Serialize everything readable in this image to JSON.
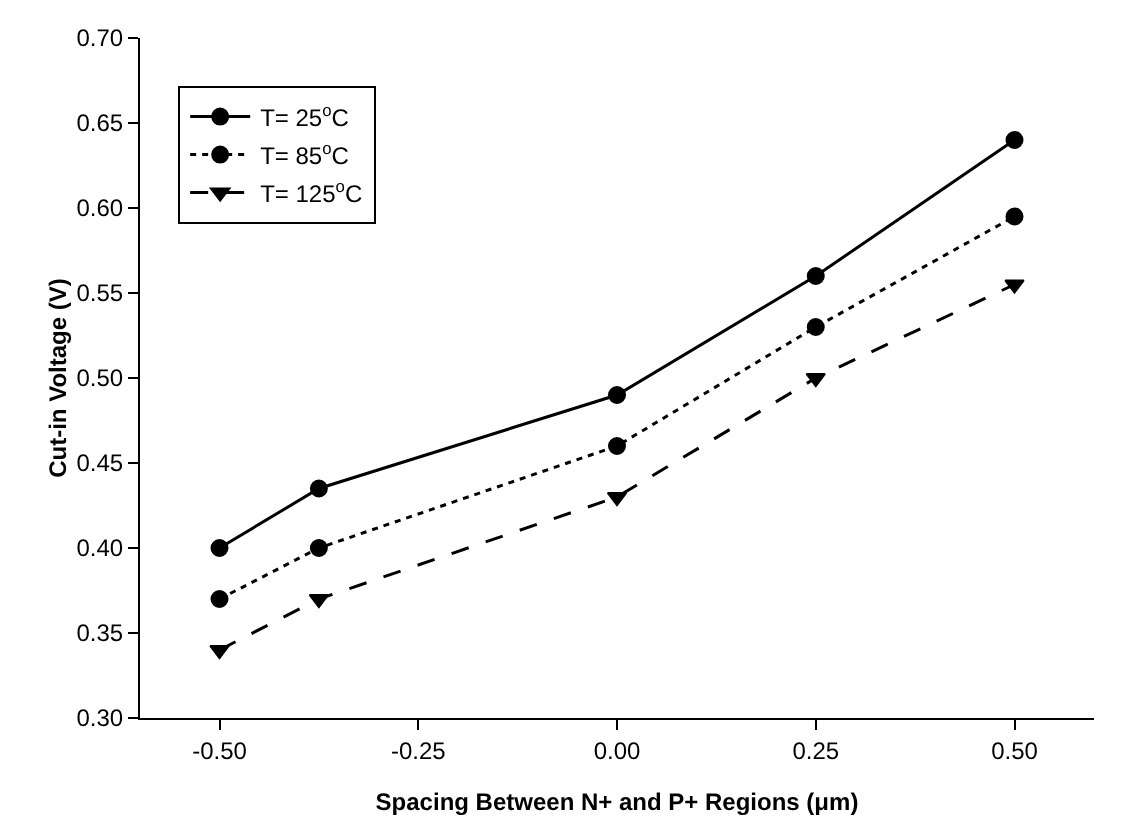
{
  "chart_data": {
    "type": "line",
    "xlabel": "Spacing Between N+ and P+ Regions (μm)",
    "ylabel": "Cut-in Voltage (V)",
    "x": [
      -0.5,
      -0.375,
      0,
      0.25,
      0.5
    ],
    "series": [
      {
        "name": "T= 25$^{o}$C",
        "color": "#000000",
        "values": [
          0.4,
          0.435,
          0.49,
          0.56,
          0.64
        ],
        "marker": "circle",
        "line_style": "solid"
      },
      {
        "name": "T= 85$^{o}$C",
        "color": "#000000",
        "values": [
          0.37,
          0.4,
          0.46,
          0.53,
          0.595
        ],
        "marker": "circle",
        "line_style": "dotted"
      },
      {
        "name": "T= 125$^{o}$C",
        "color": "#000000",
        "values": [
          0.34,
          0.37,
          0.43,
          0.5,
          0.555
        ],
        "marker": "triangle",
        "line_style": "dashed"
      }
    ],
    "xlim": [
      -0.6,
      0.6
    ],
    "xticks": [
      {
        "value": -0.5,
        "label": "-0.50"
      },
      {
        "value": -0.25,
        "label": "-0.25"
      },
      {
        "value": 0,
        "label": "0.00"
      },
      {
        "value": 0.25,
        "label": "0.25"
      },
      {
        "value": 0.5,
        "label": "0.50"
      }
    ],
    "ylim": [
      0.3,
      0.7
    ],
    "yticks": [
      {
        "value": 0.3,
        "label": "0.30"
      },
      {
        "value": 0.35,
        "label": "0.35"
      },
      {
        "value": 0.4,
        "label": "0.40"
      },
      {
        "value": 0.45,
        "label": "0.45"
      },
      {
        "value": 0.5,
        "label": "0.50"
      },
      {
        "value": 0.55,
        "label": "0.55"
      },
      {
        "value": 0.6,
        "label": "0.60"
      },
      {
        "value": 0.65,
        "label": "0.65"
      },
      {
        "value": 0.7,
        "label": "0.70"
      }
    ],
    "grid": false,
    "legend": "top left"
  }
}
